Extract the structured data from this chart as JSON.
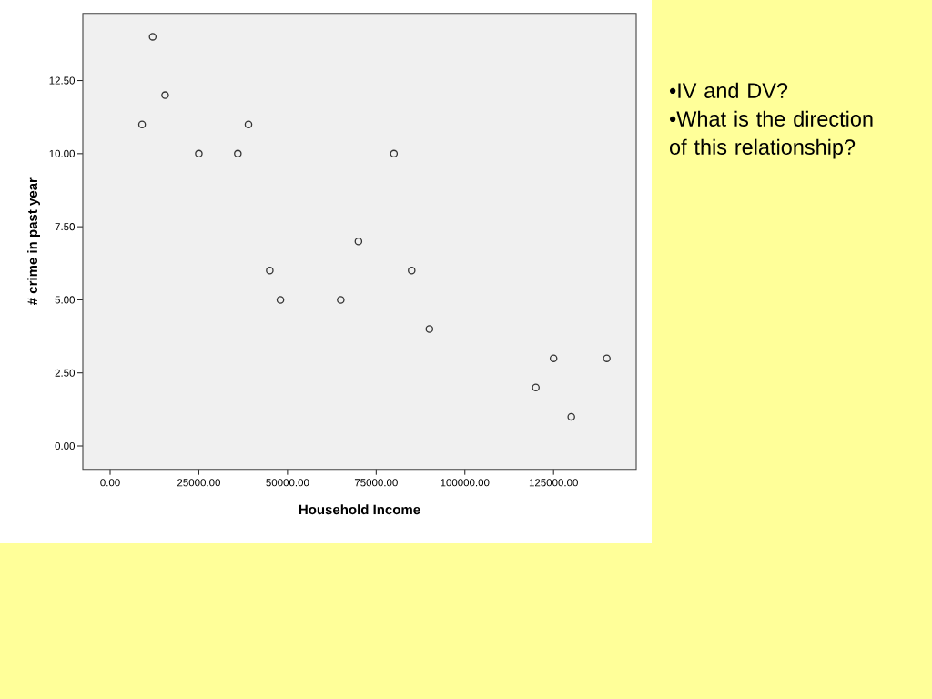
{
  "chart_data": {
    "type": "scatter",
    "xlabel": "Household Income",
    "ylabel": "# crime in past year",
    "annotations": [
      "•IV and DV?",
      "•What is the direction of this relationship?"
    ],
    "x": [
      9000,
      12000,
      15500,
      25000,
      36000,
      39000,
      45000,
      48000,
      65000,
      70000,
      80000,
      85000,
      90000,
      120000,
      125000,
      130000,
      140000
    ],
    "values": [
      11,
      14,
      12,
      10,
      10,
      11,
      6,
      5,
      5,
      7,
      10,
      6,
      4,
      2,
      3,
      1,
      3
    ],
    "color": "#333333",
    "marker": "circle",
    "xlim": [
      -7700,
      148300
    ],
    "ylim": [
      -0.8,
      14.8
    ],
    "xticks": [
      {
        "value": 0,
        "label": "0.00"
      },
      {
        "value": 25000,
        "label": "25000.00"
      },
      {
        "value": 50000,
        "label": "50000.00"
      },
      {
        "value": 75000,
        "label": "75000.00"
      },
      {
        "value": 100000,
        "label": "100000.00"
      },
      {
        "value": 125000,
        "label": "125000.00"
      }
    ],
    "yticks": [
      {
        "value": 0,
        "label": "0.00"
      },
      {
        "value": 2.5,
        "label": "2.50"
      },
      {
        "value": 5,
        "label": "5.00"
      },
      {
        "value": 7.5,
        "label": "7.50"
      },
      {
        "value": 10,
        "label": "10.00"
      },
      {
        "value": 12.5,
        "label": "12.50"
      }
    ]
  }
}
